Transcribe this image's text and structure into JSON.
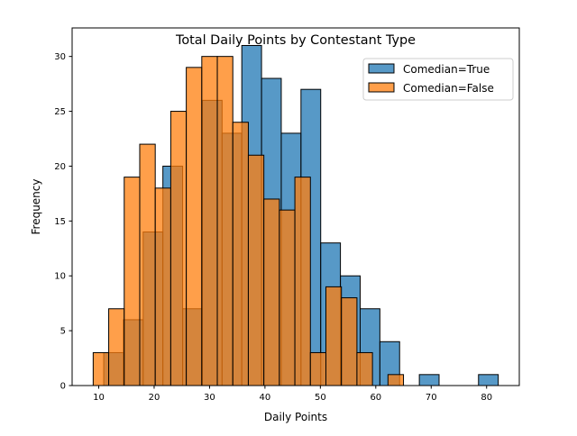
{
  "chart_data": {
    "type": "bar",
    "subtype": "histogram-overlay",
    "title": "Total Daily Points by Contestant Type",
    "xlabel": "Daily Points",
    "ylabel": "Frequency",
    "xlim": [
      5.2,
      85.9
    ],
    "ylim": [
      0,
      32.6
    ],
    "xticks": [
      10,
      20,
      30,
      40,
      50,
      60,
      70,
      80
    ],
    "yticks": [
      0,
      5,
      10,
      15,
      20,
      25,
      30
    ],
    "grid": false,
    "legend": "top-right",
    "series": [
      {
        "name": "Comedian=True",
        "color": "#1f77b4",
        "bin_start": 10.9,
        "bin_width": 3.56,
        "counts": [
          3,
          6,
          14,
          20,
          7,
          26,
          23,
          31,
          28,
          23,
          27,
          13,
          10,
          7,
          4,
          0,
          1,
          0,
          0,
          1
        ]
      },
      {
        "name": "Comedian=False",
        "color": "#ff7f0e",
        "bin_start": 9.0,
        "bin_width": 2.8,
        "counts": [
          3,
          7,
          19,
          22,
          18,
          25,
          29,
          30,
          30,
          24,
          21,
          17,
          16,
          19,
          3,
          9,
          8,
          3,
          0,
          1
        ]
      }
    ]
  }
}
